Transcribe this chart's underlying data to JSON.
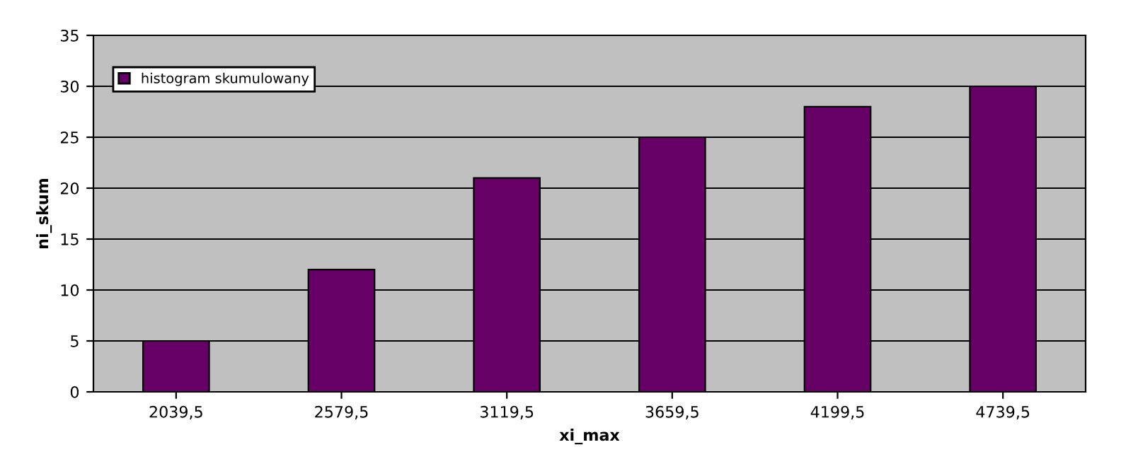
{
  "chart_data": {
    "type": "bar",
    "xlabel": "xi_max",
    "ylabel": "ni_skum",
    "categories": [
      "2039,5",
      "2579,5",
      "3119,5",
      "3659,5",
      "4199,5",
      "4739,5"
    ],
    "series": [
      {
        "name": "histogram skumulowany",
        "color": "#660066",
        "values": [
          5,
          12,
          21,
          25,
          28,
          30
        ]
      }
    ],
    "ylim": [
      0,
      35
    ],
    "yticks": [
      0,
      5,
      10,
      15,
      20,
      25,
      30,
      35
    ],
    "grid": "y",
    "legend": "top left"
  }
}
